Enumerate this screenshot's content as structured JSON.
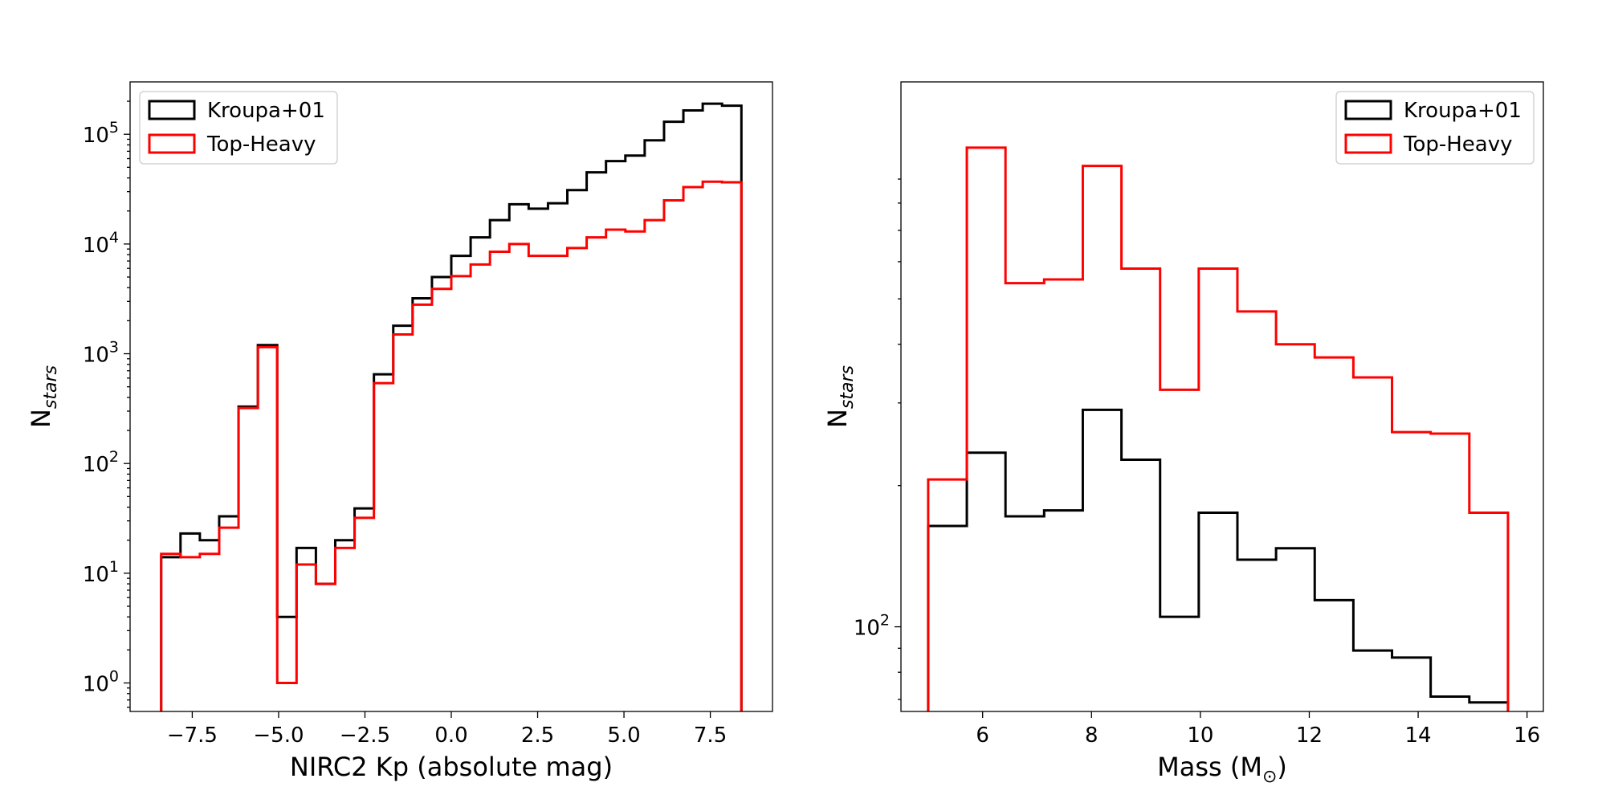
{
  "colors": {
    "kroupa": "#000000",
    "top_heavy": "#ff0000"
  },
  "chart_data": [
    {
      "type": "histogram",
      "xlabel": "NIRC2 Kp (absolute mag)",
      "ylabel_main": "N",
      "ylabel_sub": "stars",
      "xlim": [
        -9.3,
        9.3
      ],
      "ylim": [
        0.55,
        300000
      ],
      "yscale": "log",
      "xticks": [
        -7.5,
        -5.0,
        -2.5,
        0.0,
        2.5,
        5.0,
        7.5
      ],
      "xtick_labels": [
        "−7.5",
        "−5.0",
        "−2.5",
        "0.0",
        "2.5",
        "5.0",
        "7.5"
      ],
      "yticks": [
        1,
        10,
        100,
        1000,
        10000,
        100000
      ],
      "ytick_base": "10",
      "ytick_exponents": [
        "0",
        "1",
        "2",
        "3",
        "4",
        "5"
      ],
      "legend_position": "upper left",
      "bin_edges": [
        -8.4,
        -7.84,
        -7.28,
        -6.72,
        -6.16,
        -5.6,
        -5.04,
        -4.48,
        -3.92,
        -3.36,
        -2.8,
        -2.24,
        -1.68,
        -1.12,
        -0.56,
        0.0,
        0.56,
        1.12,
        1.68,
        2.24,
        2.8,
        3.36,
        3.92,
        4.48,
        5.04,
        5.6,
        6.16,
        6.72,
        7.28,
        7.84,
        8.4
      ],
      "series": [
        {
          "name": "Kroupa+01",
          "color_key": "kroupa",
          "values": [
            14,
            23,
            20,
            33,
            330,
            1200,
            4,
            17,
            8,
            20,
            39,
            650,
            1800,
            3200,
            5000,
            7800,
            11500,
            16500,
            23000,
            21000,
            23500,
            31000,
            45000,
            57000,
            64000,
            88000,
            130000,
            165000,
            190000,
            182000
          ]
        },
        {
          "name": "Top-Heavy",
          "color_key": "top_heavy",
          "values": [
            15,
            14,
            15,
            26,
            320,
            1150,
            1,
            12,
            8,
            17,
            32,
            540,
            1500,
            2800,
            3900,
            5100,
            6500,
            8500,
            10000,
            7800,
            7800,
            9200,
            11500,
            13500,
            13000,
            16500,
            25000,
            33000,
            37000,
            36500
          ]
        }
      ]
    },
    {
      "type": "histogram",
      "xlabel": "Mass (M⊙)",
      "xlabel_main": "Mass (M",
      "xlabel_sub": "⊙",
      "xlabel_tail": ")",
      "ylabel_main": "N",
      "ylabel_sub": "stars",
      "xlim": [
        4.5,
        16.3
      ],
      "ylim": [
        66,
        1450
      ],
      "yscale": "log",
      "xticks": [
        6,
        8,
        10,
        12,
        14,
        16
      ],
      "xtick_labels": [
        "6",
        "8",
        "10",
        "12",
        "14",
        "16"
      ],
      "yticks": [
        100
      ],
      "ytick_base": "10",
      "ytick_exponents": [
        "2"
      ],
      "legend_position": "upper right",
      "bin_edges": [
        5.0,
        5.71,
        6.42,
        7.13,
        7.84,
        8.55,
        9.26,
        9.97,
        10.68,
        11.39,
        12.1,
        12.81,
        13.52,
        14.23,
        14.94,
        15.65
      ],
      "series": [
        {
          "name": "Kroupa+01",
          "color_key": "kroupa",
          "values": [
            164,
            235,
            172,
            177,
            290,
            227,
            105,
            175,
            139,
            147,
            114,
            89,
            86,
            71,
            69
          ]
        },
        {
          "name": "Top-Heavy",
          "color_key": "top_heavy",
          "values": [
            206,
            1050,
            540,
            550,
            960,
            580,
            320,
            580,
            470,
            400,
            375,
            340,
            260,
            258,
            175
          ]
        }
      ]
    }
  ]
}
